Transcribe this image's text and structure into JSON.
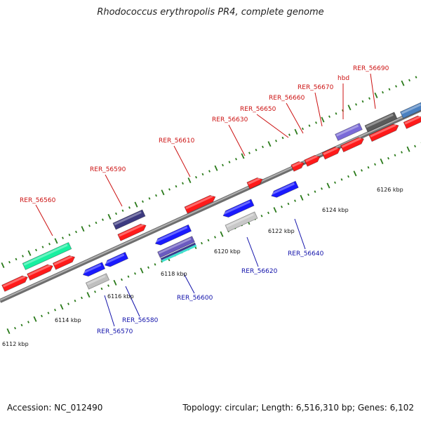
{
  "title": "Rhodococcus erythropolis PR4, complete genome",
  "accession_text": "Accession: NC_012490",
  "summary_text": "Topology: circular; Length: 6,516,310 bp; Genes: 6,102",
  "colors": {
    "backbone": "#8a8a8a",
    "tick": "#2a7a1a",
    "forward_label": "#cc1111",
    "reverse_label": "#1111aa",
    "forward_gene": "#ff1a1a",
    "reverse_gene": "#1a1aff"
  },
  "scale_labels": [
    "6112 kbp",
    "6114 kbp",
    "6116 kbp",
    "6118 kbp",
    "6120 kbp",
    "6122 kbp",
    "6124 kbp",
    "6126 kbp"
  ],
  "forward_labels": [
    "RER_56560",
    "RER_56590",
    "RER_56610",
    "RER_56630",
    "RER_56650",
    "RER_56660",
    "RER_56670",
    "hbd",
    "RER_56690"
  ],
  "reverse_labels": [
    "RER_56570",
    "RER_56580",
    "RER_56600",
    "RER_56620",
    "RER_56640"
  ]
}
